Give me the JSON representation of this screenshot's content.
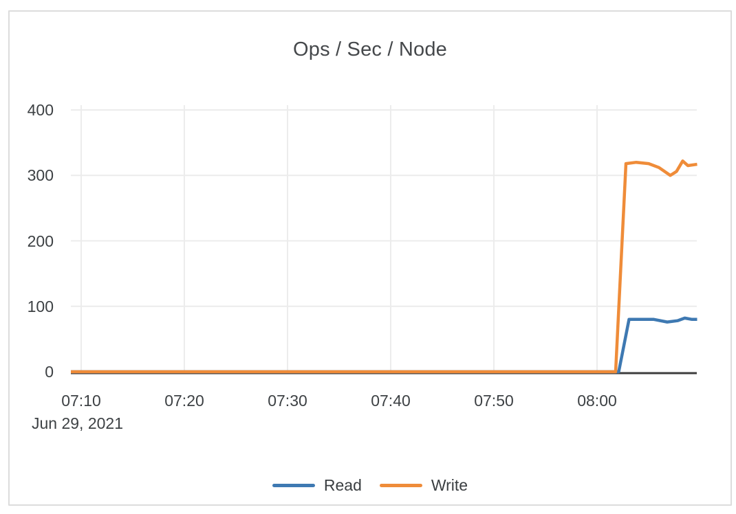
{
  "window": {
    "background_color": "#ffffff",
    "card_border_color": "#dcdcdc"
  },
  "chart_data": {
    "type": "line",
    "title": "Ops / Sec / Node",
    "grid": true,
    "legend_position": "bottom-center",
    "x_axis": {
      "date_label": "Jun 29, 2021",
      "x_unit": "minutes after 07:00 on Jun 29, 2021",
      "tick_labels": [
        "07:10",
        "07:20",
        "07:30",
        "07:40",
        "07:50",
        "08:00"
      ],
      "tick_minutes": [
        10,
        20,
        30,
        40,
        50,
        60
      ],
      "range_minutes": [
        9,
        69.7
      ]
    },
    "y_axis": {
      "tick_labels": [
        "0",
        "100",
        "200",
        "300",
        "400"
      ],
      "tick_values": [
        0,
        100,
        200,
        300,
        400
      ],
      "range": [
        0,
        400
      ]
    },
    "colors": {
      "grid_line": "#ececec",
      "axis_line": "#3d3d3d",
      "read_series": "#3e79b2",
      "write_series": "#ef8c39"
    },
    "series": [
      {
        "name": "Read",
        "color": "#3e79b2",
        "points": [
          [
            9,
            0
          ],
          [
            20,
            0
          ],
          [
            30,
            0
          ],
          [
            40,
            0
          ],
          [
            50,
            0
          ],
          [
            60,
            0
          ],
          [
            62.1,
            0
          ],
          [
            63.1,
            80
          ],
          [
            64.5,
            80
          ],
          [
            65.5,
            80
          ],
          [
            66.8,
            76
          ],
          [
            67.8,
            78
          ],
          [
            68.5,
            82
          ],
          [
            69.2,
            80
          ],
          [
            69.7,
            80
          ]
        ]
      },
      {
        "name": "Write",
        "color": "#ef8c39",
        "points": [
          [
            9,
            0
          ],
          [
            20,
            0
          ],
          [
            30,
            0
          ],
          [
            40,
            0
          ],
          [
            50,
            0
          ],
          [
            60,
            0
          ],
          [
            61.8,
            0
          ],
          [
            62.8,
            318
          ],
          [
            63.8,
            320
          ],
          [
            65,
            318
          ],
          [
            66,
            312
          ],
          [
            67.1,
            300
          ],
          [
            67.7,
            306
          ],
          [
            68.3,
            322
          ],
          [
            68.8,
            315
          ],
          [
            69.7,
            317
          ]
        ]
      }
    ]
  },
  "legend": {
    "items": [
      {
        "label": "Read",
        "color": "#3e79b2"
      },
      {
        "label": "Write",
        "color": "#ef8c39"
      }
    ]
  }
}
